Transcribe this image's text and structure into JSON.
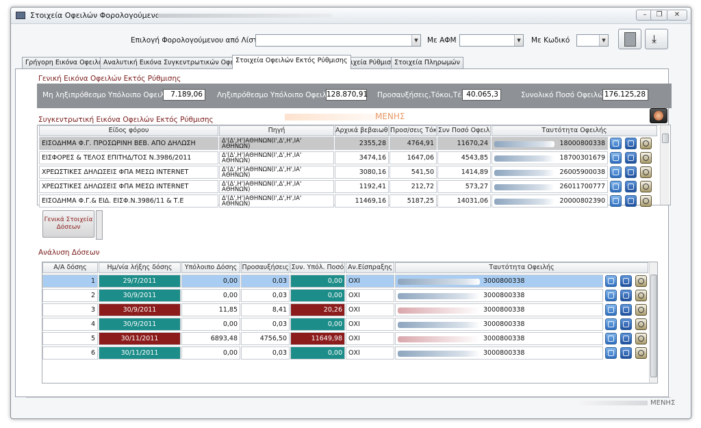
{
  "window": {
    "title": "Στοιχεία Οφειλών Φορολογούμενου :",
    "controls": [
      "–",
      "❐",
      "✕"
    ]
  },
  "header": {
    "taxpayer_list_label": "Επιλογή Φορολογούμενου από Λίστα",
    "afm_label": "Με ΑΦΜ",
    "code_label": "Με Κωδικό"
  },
  "tabs": [
    {
      "label": "Γρήγορη Εικόνα Οφειλών",
      "active": false
    },
    {
      "label": "Αναλυτική Εικόνα Συγκεντρωτικών Οφειλών",
      "active": false
    },
    {
      "label": "Στοιχεία Οφειλών Εκτός Ρύθμισης",
      "active": true
    },
    {
      "label": "Στοιχεία Ρύθμισης",
      "active": false
    },
    {
      "label": "Στοιχεία Πληρωμών",
      "active": false
    }
  ],
  "general": {
    "section_title": "Γενική Εικόνα Οφειλών Εκτός Ρύθμισης",
    "not_expired_label": "Μη ληξιπρόθεσμο Υπόλοιπο Οφειλών",
    "not_expired_value": "7.189,06",
    "expired_label": "Ληξιπρόθεσμο Υπόλοιπο Οφειλών",
    "expired_value": "128.870,91",
    "surcharges_label": "Προσαυξήσεις,Τόκοι,Τέλη",
    "surcharges_value": "40.065,3",
    "total_label": "Συνολικό Ποσό Οφειλών",
    "total_value": "176.125,28"
  },
  "aggregate": {
    "section_title": "Συγκεντρωτική Εικόνα Οφειλών Εκτός Ρύθμισης",
    "watermark": "ΜΕΝΗΣ",
    "columns": [
      "Είδος φόρου",
      "Πηγή",
      "Αρχικά βεβαιωθέν",
      "Προσ/σεις Τόκοι",
      "Συν Ποσό Οφειλ.",
      "Ταυτότητα Οφειλής"
    ],
    "rows": [
      {
        "type": "ΕΙΣΟΔΗΜΑ Φ.Γ. ΠΡΟΣΩΡΙΝΗ ΒΕΒ. ΑΠΟ ΔΗΛΩΣΗ",
        "source": "Δ'(Δ',Η')ΑΘΗΝΩΝ(Ι',Δ',Η',ΙΑ' ΑΘΗΝΩΝ)",
        "initial": "2355,28",
        "interest": "4764,91",
        "total": "11670,24",
        "id": "18000800338"
      },
      {
        "type": "ΕΙΣΦΟΡΕΣ & ΤΕΛΟΣ ΕΠΙΤΗΔ/ΤΟΣ Ν.3986/2011",
        "source": "Δ'(Δ',Η')ΑΘΗΝΩΝ(Ι',Δ',Η',ΙΑ' ΑΘΗΝΩΝ)",
        "initial": "3474,16",
        "interest": "1647,06",
        "total": "4543,85",
        "id": "18700301679"
      },
      {
        "type": "ΧΡΕΩΣΤΙΚΕΣ ΔΗΛΩΣΕΙΣ ΦΠΑ ΜΕΣΩ INTERNET",
        "source": "Δ'(Δ',Η')ΑΘΗΝΩΝ(Ι',Δ',Η',ΙΑ' ΑΘΗΝΩΝ)",
        "initial": "3080,16",
        "interest": "541,50",
        "total": "1414,89",
        "id": "26005900038"
      },
      {
        "type": "ΧΡΕΩΣΤΙΚΕΣ ΔΗΛΩΣΕΙΣ ΦΠΑ ΜΕΣΩ INTERNET",
        "source": "Δ'(Δ',Η')ΑΘΗΝΩΝ(Ι',Δ',Η',ΙΑ' ΑΘΗΝΩΝ)",
        "initial": "1192,41",
        "interest": "212,72",
        "total": "573,27",
        "id": "26011700777"
      },
      {
        "type": "ΕΙΣΟΔΗΜΑ Φ.Γ.& ΕΙΔ. ΕΙΣΦ.Ν.3986/11 & Τ.Ε",
        "source": "Δ'(Δ',Η')ΑΘΗΝΩΝ(Ι',Δ',Η',ΙΑ' ΑΘΗΝΩΝ)",
        "initial": "11469,16",
        "interest": "5187,25",
        "total": "14031,06",
        "id": "20000802390"
      }
    ]
  },
  "general_info_button": "Γενικά Στοιχεία Δόσεων",
  "installments": {
    "section_title": "Ανάλυση Δόσεων",
    "columns": [
      "Α/Α δόσης",
      "Ημ/νία λήξης δόσης",
      "Υπόλοιπο Δόσης",
      "Προσαυξήσεις",
      "Συν. Υπόλ. Ποσό",
      "Αν.Είσπραξης",
      "Ταυτότητα Οφειλής"
    ],
    "rows": [
      {
        "no": "1",
        "due": "29/7/2011",
        "balance": "0,00",
        "surcharge": "0,03",
        "total": "0,00",
        "collection": "ΟΧΙ",
        "id": "3000800338"
      },
      {
        "no": "2",
        "due": "30/9/2011",
        "balance": "0,00",
        "surcharge": "0,03",
        "total": "0,00",
        "collection": "ΟΧΙ",
        "id": "3000800338"
      },
      {
        "no": "3",
        "due": "30/9/2011",
        "balance": "11,85",
        "surcharge": "8,41",
        "total": "20,26",
        "collection": "ΟΧΙ",
        "id": "3000800338"
      },
      {
        "no": "4",
        "due": "30/9/2011",
        "balance": "0,00",
        "surcharge": "0,03",
        "total": "0,00",
        "collection": "ΟΧΙ",
        "id": "3000800338"
      },
      {
        "no": "5",
        "due": "30/11/2011",
        "balance": "6893,48",
        "surcharge": "4756,50",
        "total": "11649,98",
        "collection": "ΟΧΙ",
        "id": "3000800338"
      },
      {
        "no": "6",
        "due": "30/11/2011",
        "balance": "0,00",
        "surcharge": "0,03",
        "total": "0,00",
        "collection": "ΟΧΙ",
        "id": "3000800338"
      }
    ]
  },
  "status": {
    "text": "ΜΕΝΗΣ"
  },
  "colors": {
    "teal": "#1d8d89",
    "maroon": "#8c1c1c",
    "selected_row": "#a9cdf2",
    "summary_bar": "#8e9297"
  }
}
